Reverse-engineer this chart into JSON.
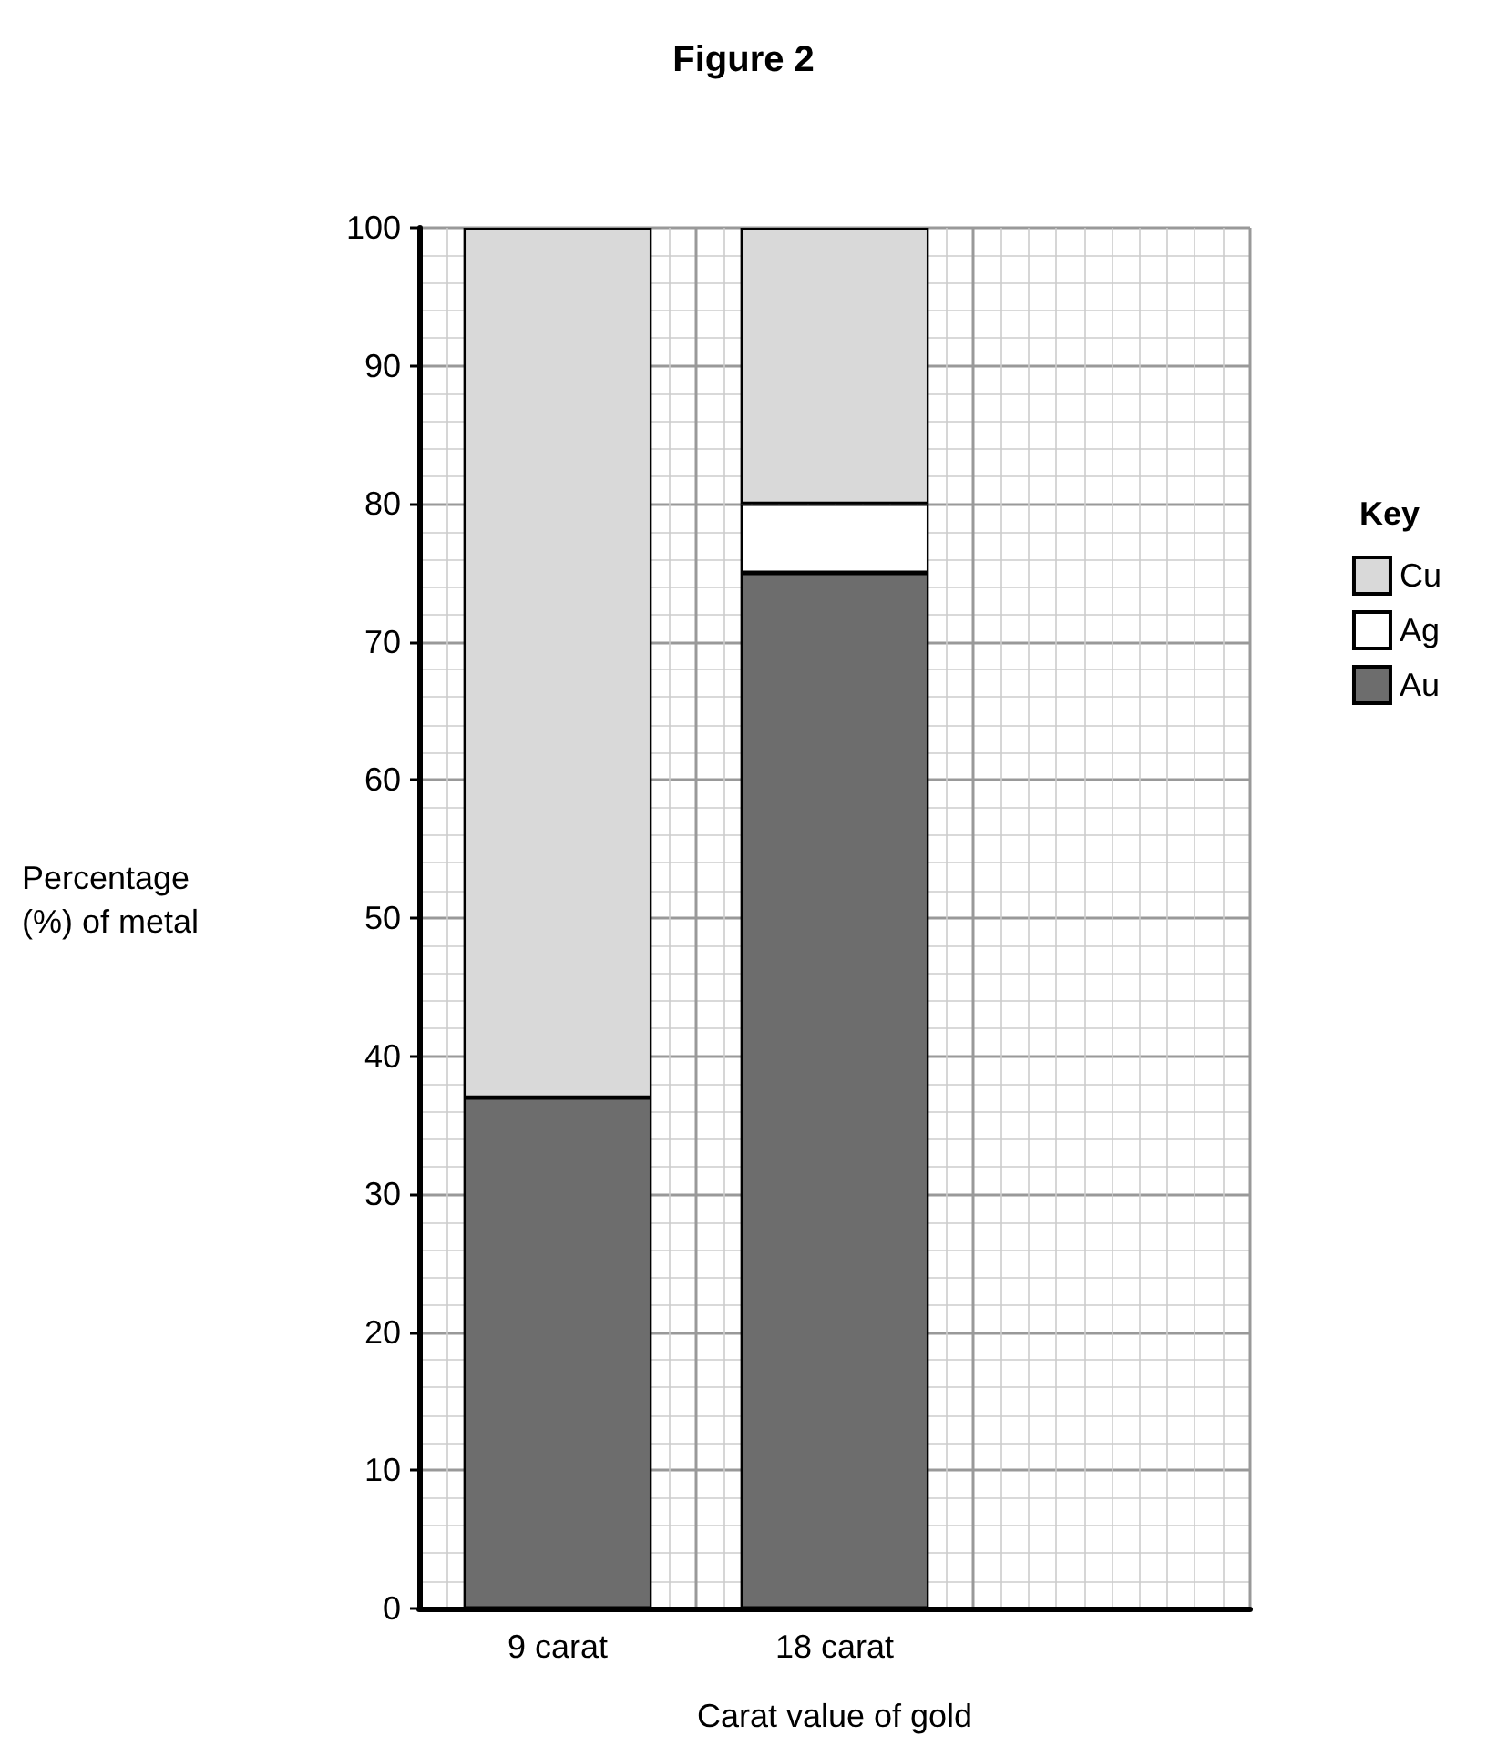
{
  "chart_data": {
    "type": "bar",
    "title": "Figure 2",
    "xlabel": "Carat value of gold",
    "ylabel": "Percentage\n(%) of metal",
    "legend_title": "Key",
    "categories": [
      "9 carat",
      "18 carat",
      null
    ],
    "stacked": true,
    "series": [
      {
        "name": "Au",
        "color": "#6d6d6d",
        "values": [
          37,
          75,
          null
        ]
      },
      {
        "name": "Ag",
        "color": "#ffffff",
        "values": [
          null,
          5,
          null
        ]
      },
      {
        "name": "Cu",
        "color": "#d9d9d9",
        "values": [
          63,
          20,
          null
        ]
      }
    ],
    "ylim": [
      0,
      100
    ],
    "yticks": [
      0,
      10,
      20,
      30,
      40,
      50,
      60,
      70,
      80,
      90,
      100
    ],
    "grid": true,
    "legend": "right"
  }
}
